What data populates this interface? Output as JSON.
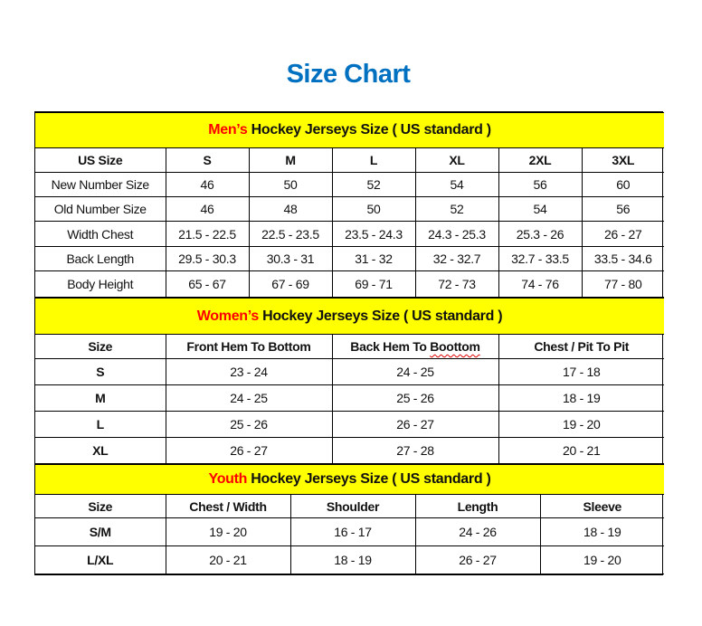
{
  "title": "Size Chart",
  "colors": {
    "title": "#0070c0",
    "section_bg": "#ffff00",
    "section_highlight": "#ff0000"
  },
  "sections": [
    {
      "highlight": "Men’s",
      "heading": " Hockey Jerseys Size ( US standard )",
      "headers": [
        "US Size",
        "S",
        "M",
        "L",
        "XL",
        "2XL",
        "3XL"
      ],
      "rows": [
        [
          "New Number Size",
          "46",
          "50",
          "52",
          "54",
          "56",
          "60"
        ],
        [
          "Old Number Size",
          "46",
          "48",
          "50",
          "52",
          "54",
          "56"
        ],
        [
          "Width Chest",
          "21.5 - 22.5",
          "22.5 - 23.5",
          "23.5 - 24.3",
          "24.3 - 25.3",
          "25.3 - 26",
          "26 - 27"
        ],
        [
          "Back Length",
          "29.5 - 30.3",
          "30.3 - 31",
          "31 - 32",
          "32 - 32.7",
          "32.7 - 33.5",
          "33.5 - 34.6"
        ],
        [
          "Body Height",
          "65 - 67",
          "67 - 69",
          "69 - 71",
          "72 - 73",
          "74 - 76",
          "77 - 80"
        ]
      ]
    },
    {
      "highlight": "Women’s",
      "heading": " Hockey Jerseys Size ( US standard )",
      "headers": [
        "Size",
        "Front Hem To Bottom",
        "Back Hem To Boottom",
        "Chest / Pit To Pit"
      ],
      "rows": [
        [
          "S",
          "23 - 24",
          "24 - 25",
          "17 - 18"
        ],
        [
          "M",
          "24 - 25",
          "25 - 26",
          "18 - 19"
        ],
        [
          "L",
          "25 - 26",
          "26 - 27",
          "19 - 20"
        ],
        [
          "XL",
          "26 - 27",
          "27 - 28",
          "20 - 21"
        ]
      ]
    },
    {
      "highlight": "Youth",
      "heading": " Hockey Jerseys Size ( US standard )",
      "headers": [
        "Size",
        "Chest / Width",
        "Shoulder",
        "Length",
        "Sleeve"
      ],
      "rows": [
        [
          "S/M",
          "19 - 20",
          "16 - 17",
          "24 - 26",
          "18 - 19"
        ],
        [
          "L/XL",
          "20 - 21",
          "18 - 19",
          "26 - 27",
          "19 - 20"
        ]
      ]
    }
  ]
}
